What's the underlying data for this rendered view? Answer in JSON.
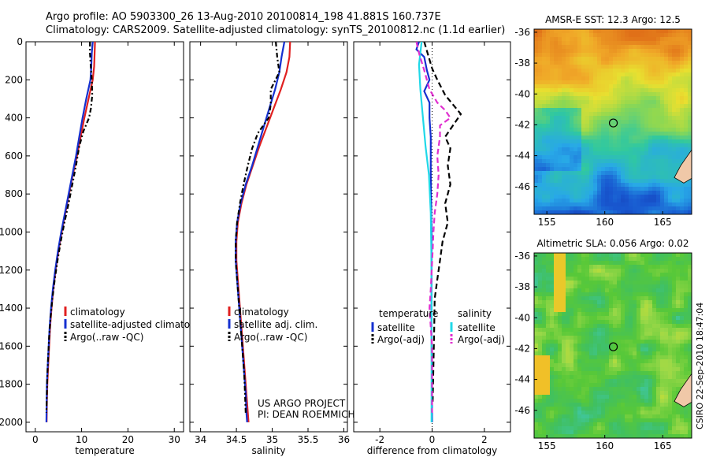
{
  "header": {
    "line1": "Argo profile: AO 5903300_26 13-Aug-2010 20100814_198 41.881S 160.737E",
    "line2": "Climatology: CARS2009. Satellite-adjusted climatology: synTS_20100812.nc (1.1d earlier)"
  },
  "credit": "CSIRO 22-Sep-2010 18:47:04",
  "chart_data": [
    {
      "type": "line",
      "name": "temperature-panel",
      "xlabel": "temperature",
      "ylabel": "",
      "xlim": [
        -2,
        32
      ],
      "ylim": [
        2050,
        0
      ],
      "xticks": [
        "0",
        "10",
        "20",
        "30"
      ],
      "xtick_values": [
        0,
        10,
        20,
        30
      ],
      "yticks": [
        "0",
        "200",
        "400",
        "600",
        "800",
        "1000",
        "1200",
        "1400",
        "1600",
        "1800",
        "2000"
      ],
      "ytick_values": [
        0,
        200,
        400,
        600,
        800,
        1000,
        1200,
        1400,
        1600,
        1800,
        2000
      ],
      "legend": [
        "climatology",
        "satellite-adjusted climatology",
        "Argo(..raw -QC)"
      ],
      "series": [
        {
          "name": "climatology",
          "color": "#e02020",
          "dash": "",
          "points": [
            [
              12.9,
              0
            ],
            [
              12.8,
              60
            ],
            [
              12.7,
              130
            ],
            [
              12.4,
              200
            ],
            [
              11.5,
              300
            ],
            [
              10.6,
              400
            ],
            [
              9.8,
              500
            ],
            [
              9.0,
              600
            ],
            [
              8.1,
              700
            ],
            [
              7.3,
              800
            ],
            [
              6.5,
              900
            ],
            [
              5.7,
              1000
            ],
            [
              5.0,
              1100
            ],
            [
              4.4,
              1200
            ],
            [
              3.9,
              1300
            ],
            [
              3.5,
              1400
            ],
            [
              3.2,
              1500
            ],
            [
              3.0,
              1600
            ],
            [
              2.8,
              1700
            ],
            [
              2.6,
              1800
            ],
            [
              2.5,
              1900
            ],
            [
              2.45,
              2000
            ]
          ]
        },
        {
          "name": "satellite-adjusted climatology",
          "color": "#1530d0",
          "dash": "",
          "points": [
            [
              12.4,
              0
            ],
            [
              12.2,
              60
            ],
            [
              12.1,
              130
            ],
            [
              11.9,
              200
            ],
            [
              11.0,
              300
            ],
            [
              10.2,
              400
            ],
            [
              9.5,
              500
            ],
            [
              8.8,
              600
            ],
            [
              8.0,
              700
            ],
            [
              7.2,
              800
            ],
            [
              6.4,
              900
            ],
            [
              5.6,
              1000
            ],
            [
              4.9,
              1100
            ],
            [
              4.3,
              1200
            ],
            [
              3.8,
              1300
            ],
            [
              3.4,
              1400
            ],
            [
              3.1,
              1500
            ],
            [
              2.9,
              1600
            ],
            [
              2.7,
              1700
            ],
            [
              2.5,
              1800
            ],
            [
              2.45,
              1900
            ],
            [
              2.4,
              2000
            ]
          ]
        },
        {
          "name": "Argo(..raw -QC)",
          "color": "#000000",
          "dash": "6,3,2,3",
          "points": [
            [
              11.8,
              0
            ],
            [
              11.8,
              60
            ],
            [
              12.0,
              140
            ],
            [
              12.2,
              200
            ],
            [
              12.3,
              280
            ],
            [
              12.0,
              350
            ],
            [
              11.6,
              400
            ],
            [
              10.4,
              470
            ],
            [
              9.5,
              550
            ],
            [
              8.8,
              650
            ],
            [
              8.0,
              750
            ],
            [
              7.2,
              850
            ],
            [
              6.3,
              950
            ],
            [
              5.5,
              1050
            ],
            [
              4.8,
              1150
            ],
            [
              4.2,
              1250
            ],
            [
              3.7,
              1350
            ],
            [
              3.3,
              1450
            ],
            [
              3.0,
              1550
            ],
            [
              2.8,
              1650
            ],
            [
              2.6,
              1750
            ],
            [
              2.5,
              1850
            ],
            [
              2.4,
              1950
            ]
          ]
        }
      ]
    },
    {
      "type": "line",
      "name": "salinity-panel",
      "xlabel": "salinity",
      "ylabel": "",
      "xlim": [
        33.85,
        36.05
      ],
      "ylim": [
        2050,
        0
      ],
      "xticks": [
        "34",
        "34.5",
        "35",
        "35.5",
        "36"
      ],
      "xtick_values": [
        34,
        34.5,
        35,
        35.5,
        36
      ],
      "legend": [
        "climatology",
        "satellite adj. clim.",
        "Argo(..raw -QC)"
      ],
      "annotation": [
        "US ARGO PROJECT",
        "PI: DEAN ROEMMICH"
      ],
      "series": [
        {
          "name": "climatology",
          "color": "#e02020",
          "dash": "",
          "points": [
            [
              35.25,
              0
            ],
            [
              35.24,
              80
            ],
            [
              35.2,
              160
            ],
            [
              35.12,
              250
            ],
            [
              35.02,
              350
            ],
            [
              34.92,
              450
            ],
            [
              34.82,
              550
            ],
            [
              34.73,
              650
            ],
            [
              34.64,
              750
            ],
            [
              34.57,
              850
            ],
            [
              34.52,
              950
            ],
            [
              34.5,
              1050
            ],
            [
              34.5,
              1150
            ],
            [
              34.52,
              1250
            ],
            [
              34.54,
              1350
            ],
            [
              34.56,
              1450
            ],
            [
              34.58,
              1550
            ],
            [
              34.6,
              1650
            ],
            [
              34.62,
              1750
            ],
            [
              34.64,
              1850
            ],
            [
              34.66,
              1950
            ],
            [
              34.67,
              2000
            ]
          ]
        },
        {
          "name": "satellite adj. clim.",
          "color": "#1530d0",
          "dash": "",
          "points": [
            [
              35.17,
              0
            ],
            [
              35.13,
              80
            ],
            [
              35.1,
              160
            ],
            [
              35.04,
              250
            ],
            [
              34.96,
              350
            ],
            [
              34.88,
              450
            ],
            [
              34.8,
              550
            ],
            [
              34.72,
              650
            ],
            [
              34.63,
              750
            ],
            [
              34.56,
              850
            ],
            [
              34.51,
              950
            ],
            [
              34.49,
              1050
            ],
            [
              34.49,
              1150
            ],
            [
              34.51,
              1250
            ],
            [
              34.53,
              1350
            ],
            [
              34.55,
              1450
            ],
            [
              34.57,
              1550
            ],
            [
              34.59,
              1650
            ],
            [
              34.61,
              1750
            ],
            [
              34.63,
              1850
            ],
            [
              34.64,
              1950
            ],
            [
              34.65,
              2000
            ]
          ]
        },
        {
          "name": "Argo(..raw -QC)",
          "color": "#000000",
          "dash": "6,3,2,3",
          "points": [
            [
              35.05,
              0
            ],
            [
              35.07,
              80
            ],
            [
              35.1,
              160
            ],
            [
              34.98,
              250
            ],
            [
              34.98,
              330
            ],
            [
              34.95,
              400
            ],
            [
              34.8,
              480
            ],
            [
              34.72,
              560
            ],
            [
              34.66,
              650
            ],
            [
              34.6,
              750
            ],
            [
              34.55,
              850
            ],
            [
              34.51,
              950
            ],
            [
              34.49,
              1050
            ],
            [
              34.49,
              1150
            ],
            [
              34.51,
              1250
            ],
            [
              34.53,
              1350
            ],
            [
              34.55,
              1450
            ],
            [
              34.57,
              1550
            ],
            [
              34.59,
              1650
            ],
            [
              34.61,
              1750
            ],
            [
              34.62,
              1850
            ],
            [
              34.63,
              1950
            ]
          ]
        }
      ]
    },
    {
      "type": "line",
      "name": "difference-panel",
      "xlabel": "difference from climatology",
      "ylabel": "",
      "xlim": [
        -3,
        3
      ],
      "ylim": [
        2050,
        0
      ],
      "xticks": [
        "-2",
        "0",
        "2"
      ],
      "xtick_values": [
        -2,
        0,
        2
      ],
      "legend": [
        "temperature",
        "satellite",
        "Argo(-adj)",
        "salinity",
        "satellite",
        "Argo(-adj)"
      ],
      "series": [
        {
          "name": "temperature satellite",
          "color": "#1530d0",
          "dash": "",
          "points": [
            [
              -0.5,
              0
            ],
            [
              -0.6,
              40
            ],
            [
              -0.3,
              80
            ],
            [
              -0.2,
              150
            ],
            [
              -0.1,
              200
            ],
            [
              -0.3,
              260
            ],
            [
              -0.1,
              320
            ],
            [
              -0.1,
              400
            ],
            [
              -0.05,
              500
            ],
            [
              -0.05,
              700
            ],
            [
              -0.02,
              1000
            ],
            [
              -0.02,
              1500
            ],
            [
              0,
              2000
            ]
          ]
        },
        {
          "name": "temperature Argo(-adj)",
          "color": "#000000",
          "dash": "7,4",
          "points": [
            [
              -0.3,
              0
            ],
            [
              0.0,
              140
            ],
            [
              0.2,
              200
            ],
            [
              0.5,
              280
            ],
            [
              0.8,
              330
            ],
            [
              1.1,
              380
            ],
            [
              0.8,
              440
            ],
            [
              0.5,
              500
            ],
            [
              0.7,
              560
            ],
            [
              0.6,
              650
            ],
            [
              0.7,
              750
            ],
            [
              0.5,
              850
            ],
            [
              0.6,
              950
            ],
            [
              0.4,
              1050
            ],
            [
              0.3,
              1150
            ],
            [
              0.2,
              1250
            ],
            [
              0.1,
              1350
            ],
            [
              0.08,
              1500
            ],
            [
              0.05,
              1700
            ],
            [
              0.02,
              1900
            ]
          ]
        },
        {
          "name": "salinity satellite",
          "color": "#20d8e8",
          "dash": "",
          "points": [
            [
              -0.4,
              0
            ],
            [
              -0.5,
              120
            ],
            [
              -0.45,
              250
            ],
            [
              -0.35,
              400
            ],
            [
              -0.25,
              550
            ],
            [
              -0.12,
              700
            ],
            [
              -0.05,
              900
            ],
            [
              -0.03,
              1100
            ],
            [
              -0.02,
              1400
            ],
            [
              -0.02,
              1700
            ],
            [
              -0.02,
              2000
            ]
          ]
        },
        {
          "name": "salinity Argo(-adj)",
          "color": "#e030d0",
          "dash": "7,4",
          "points": [
            [
              -0.6,
              0
            ],
            [
              -0.5,
              60
            ],
            [
              -0.3,
              150
            ],
            [
              -0.1,
              250
            ],
            [
              0.2,
              320
            ],
            [
              0.5,
              360
            ],
            [
              0.7,
              400
            ],
            [
              0.3,
              440
            ],
            [
              0.3,
              500
            ],
            [
              0.2,
              600
            ],
            [
              0.25,
              700
            ],
            [
              0.2,
              800
            ],
            [
              0.1,
              900
            ],
            [
              0.05,
              1000
            ],
            [
              0.02,
              1100
            ],
            [
              -0.05,
              1300
            ],
            [
              -0.1,
              1400
            ],
            [
              -0.05,
              1500
            ],
            [
              0,
              1600
            ],
            [
              0,
              1800
            ],
            [
              0,
              1950
            ]
          ]
        }
      ]
    },
    {
      "type": "heatmap",
      "name": "sst-map",
      "title": "AMSR-E SST: 12.3 Argo: 12.5",
      "xlim": [
        153.9,
        167.5
      ],
      "ylim": [
        -47.8,
        -35.8
      ],
      "xticks": [
        "155",
        "160",
        "165"
      ],
      "xtick_values": [
        155,
        160,
        165
      ],
      "yticks": [
        "-36",
        "-38",
        "-40",
        "-42",
        "-44",
        "-46"
      ],
      "ytick_values": [
        -36,
        -38,
        -40,
        -42,
        -44,
        -46
      ],
      "marker": [
        160.737,
        -41.881
      ]
    },
    {
      "type": "heatmap",
      "name": "sla-map",
      "title": "Altimetric SLA: 0.056 Argo: 0.02",
      "xlim": [
        153.9,
        167.5
      ],
      "ylim": [
        -47.8,
        -35.8
      ],
      "xticks": [
        "155",
        "160",
        "165"
      ],
      "xtick_values": [
        155,
        160,
        165
      ],
      "yticks": [
        "-36",
        "-38",
        "-40",
        "-42",
        "-44",
        "-46"
      ],
      "ytick_values": [
        -36,
        -38,
        -40,
        -42,
        -44,
        -46
      ],
      "marker": [
        160.737,
        -41.881
      ]
    }
  ],
  "colors": {
    "sst_stops": [
      "#e07018",
      "#f0a828",
      "#e8e030",
      "#90d850",
      "#30c8a0",
      "#28a8e8",
      "#1858d0",
      "#101890"
    ],
    "sla_stops": [
      "#f0c028",
      "#d8e030",
      "#9ad848",
      "#58c838",
      "#40c060",
      "#40c8b0"
    ],
    "land": "#f0c8a8"
  }
}
